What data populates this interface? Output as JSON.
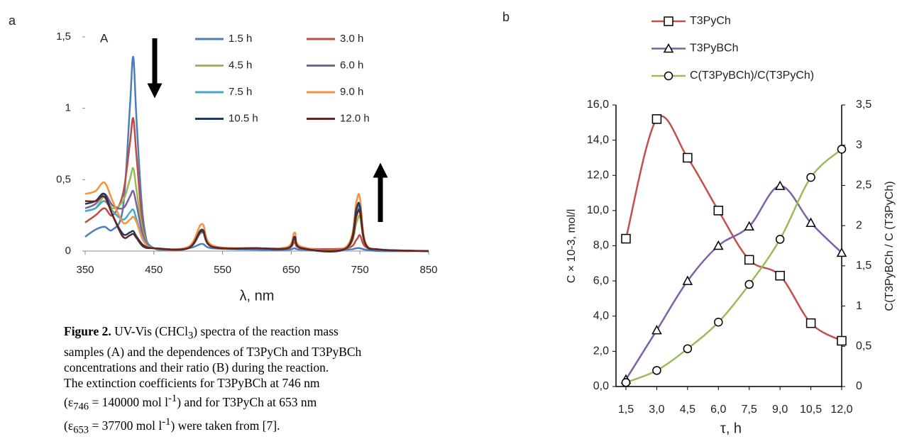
{
  "chart_data": [
    {
      "type": "line",
      "label": "a",
      "annotation": "A",
      "x_label": "λ, nm",
      "x": [
        350,
        365,
        378,
        390,
        405,
        415,
        420,
        425,
        435,
        450,
        500,
        520,
        535,
        600,
        645,
        655,
        665,
        730,
        745,
        750,
        758,
        780,
        850
      ],
      "xlim": [
        350,
        850
      ],
      "xticks": [
        350,
        450,
        550,
        650,
        750,
        850
      ],
      "ylim": [
        0,
        1.5
      ],
      "yticks": [
        0,
        {
          "value": 0.5,
          "label": "0,5"
        },
        1,
        {
          "value": 1.5,
          "label": "1,5"
        }
      ],
      "series": [
        {
          "name": "1.5 h",
          "color": "#4a7ebb",
          "values": [
            0.1,
            0.15,
            0.17,
            0.15,
            0.3,
            1.0,
            1.36,
            0.9,
            0.2,
            0.02,
            0.02,
            0.05,
            0.02,
            0.01,
            0.01,
            0.02,
            0.01,
            0.01,
            0.02,
            0.02,
            0.01,
            0,
            0
          ]
        },
        {
          "name": "3.0 h",
          "color": "#be4b48",
          "values": [
            0.2,
            0.25,
            0.3,
            0.25,
            0.4,
            0.75,
            0.93,
            0.65,
            0.15,
            0.02,
            0.02,
            0.14,
            0.03,
            0.02,
            0.02,
            0.06,
            0.02,
            0.02,
            0.08,
            0.11,
            0.03,
            0.01,
            0
          ]
        },
        {
          "name": "4.5 h",
          "color": "#98b954",
          "values": [
            0.28,
            0.3,
            0.38,
            0.3,
            0.35,
            0.5,
            0.58,
            0.42,
            0.12,
            0.02,
            0.02,
            0.15,
            0.03,
            0.02,
            0.02,
            0.08,
            0.02,
            0.02,
            0.2,
            0.24,
            0.05,
            0.01,
            0
          ]
        },
        {
          "name": "6.0 h",
          "color": "#7d60a0",
          "values": [
            0.3,
            0.33,
            0.4,
            0.32,
            0.3,
            0.38,
            0.42,
            0.32,
            0.1,
            0.02,
            0.02,
            0.15,
            0.03,
            0.02,
            0.02,
            0.1,
            0.02,
            0.02,
            0.25,
            0.28,
            0.05,
            0.01,
            0
          ]
        },
        {
          "name": "7.5 h",
          "color": "#46aac5",
          "values": [
            0.28,
            0.3,
            0.35,
            0.28,
            0.22,
            0.27,
            0.29,
            0.22,
            0.08,
            0.02,
            0.02,
            0.13,
            0.03,
            0.02,
            0.02,
            0.08,
            0.02,
            0.02,
            0.28,
            0.3,
            0.05,
            0.01,
            0
          ]
        },
        {
          "name": "9.0 h",
          "color": "#f69240",
          "values": [
            0.4,
            0.42,
            0.48,
            0.35,
            0.2,
            0.22,
            0.24,
            0.2,
            0.07,
            0.02,
            0.03,
            0.19,
            0.04,
            0.02,
            0.03,
            0.13,
            0.03,
            0.03,
            0.35,
            0.37,
            0.06,
            0.01,
            0
          ]
        },
        {
          "name": "10.5 h",
          "color": "#1f3a5f",
          "values": [
            0.33,
            0.35,
            0.4,
            0.25,
            0.12,
            0.13,
            0.14,
            0.1,
            0.04,
            0.02,
            0.02,
            0.15,
            0.03,
            0.02,
            0.02,
            0.1,
            0.02,
            0.02,
            0.3,
            0.31,
            0.05,
            0.01,
            0
          ]
        },
        {
          "name": "12.0 h",
          "color": "#632523",
          "values": [
            0.35,
            0.35,
            0.38,
            0.25,
            0.1,
            0.11,
            0.12,
            0.09,
            0.03,
            0.02,
            0.02,
            0.14,
            0.03,
            0.02,
            0.02,
            0.09,
            0.02,
            0.02,
            0.25,
            0.27,
            0.05,
            0.01,
            0
          ]
        }
      ]
    },
    {
      "type": "line",
      "label": "b",
      "x_label": "τ, h",
      "y_label": "C × 10-3, mol/l",
      "y2_label": "C(T3PyBCh / C (T3PyCh)",
      "categories": [
        "1,5",
        "3,0",
        "4,5",
        "6,0",
        "7,5",
        "9,0",
        "10,5",
        "12,0"
      ],
      "ylim": [
        0,
        16
      ],
      "yticks": [
        {
          "value": 0,
          "label": "0,0"
        },
        {
          "value": 2,
          "label": "2,0"
        },
        {
          "value": 4,
          "label": "4,0"
        },
        {
          "value": 6,
          "label": "6,0"
        },
        {
          "value": 8,
          "label": "8,0"
        },
        {
          "value": 10,
          "label": "10,0"
        },
        {
          "value": 12,
          "label": "12,0"
        },
        {
          "value": 14,
          "label": "14,0"
        },
        {
          "value": 16,
          "label": "16,0"
        }
      ],
      "y2lim": [
        0,
        3.5
      ],
      "y2ticks": [
        0,
        {
          "value": 0.5,
          "label": "0,5"
        },
        1,
        {
          "value": 1.5,
          "label": "1,5"
        },
        2,
        {
          "value": 2.5,
          "label": "2,5"
        },
        3,
        {
          "value": 3.5,
          "label": "3,5"
        }
      ],
      "series": [
        {
          "name": "T3PyCh",
          "color": "#c0504d",
          "marker": "square",
          "values": [
            8.4,
            15.2,
            13.0,
            10.0,
            7.2,
            6.3,
            3.6,
            2.6
          ]
        },
        {
          "name": "T3PyBCh",
          "color": "#7f5fa8",
          "marker": "triangle",
          "values": [
            0.4,
            3.2,
            6.0,
            8.0,
            9.1,
            11.4,
            9.3,
            7.6
          ]
        },
        {
          "name": "C(T3PyBCh)/C(T3PyCh)",
          "color": "#9bbb59",
          "marker": "circle",
          "axis": "y2",
          "values": [
            0.05,
            0.2,
            0.47,
            0.8,
            1.27,
            1.83,
            2.6,
            2.95
          ]
        }
      ]
    }
  ],
  "caption": [
    [
      "Figure 2.",
      " UV-Vis (CHCl",
      "3",
      ") spectra of the reaction mass"
    ],
    [
      "samples (A) and the dependences of T3PyCh and T3PyBCh"
    ],
    [
      "concentrations and their ratio (B) during the reaction."
    ],
    [
      "The extinction coefficients for T3PyBCh at 746 nm"
    ],
    [
      "(ε",
      "746",
      " = 140000 mol l",
      "-1",
      ") and for T3PyCh at 653 nm"
    ],
    [
      "(ε",
      "653",
      " = 37700 mol l",
      "-1",
      ") were taken from [7]."
    ]
  ]
}
